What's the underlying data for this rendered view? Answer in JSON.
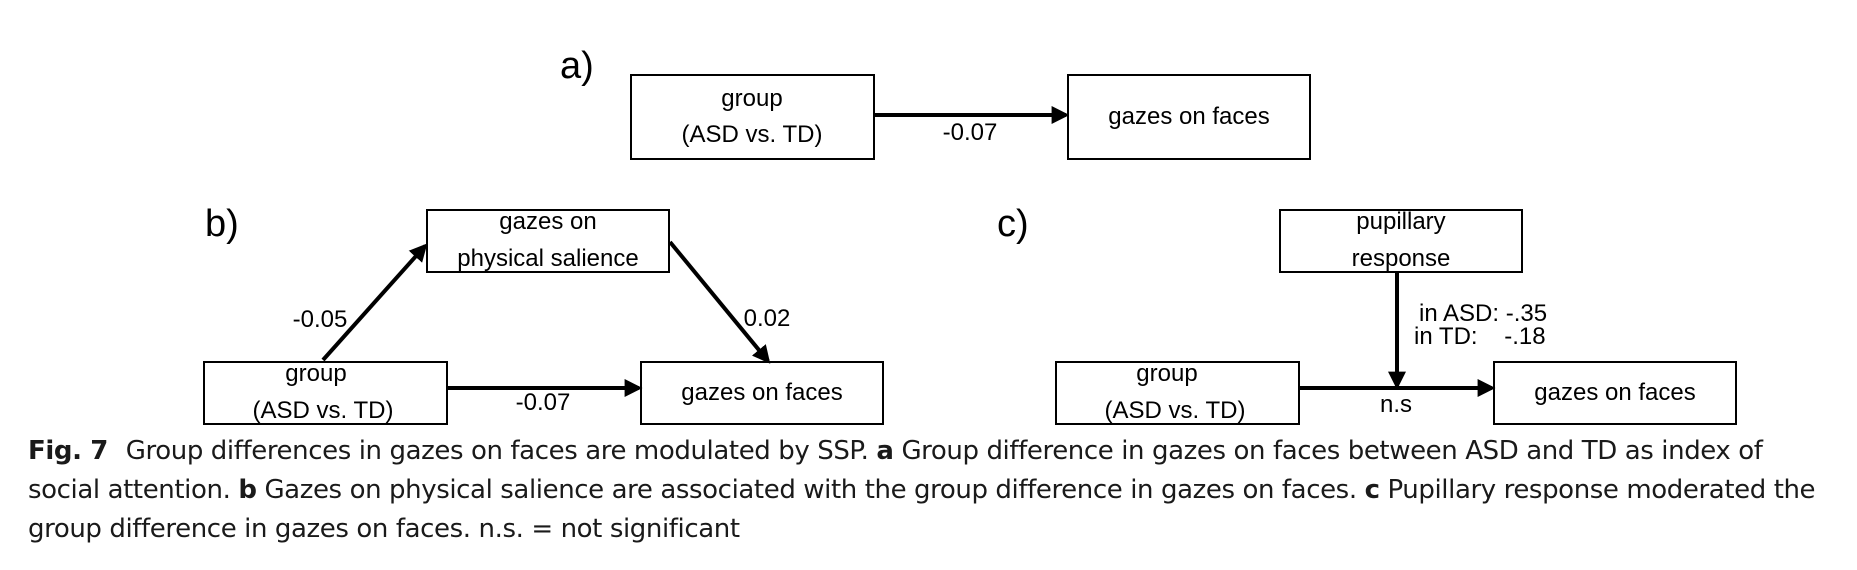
{
  "panels": {
    "a": {
      "label": "a)",
      "group_line1": "group",
      "group_line2": "(ASD vs. TD)",
      "outcome": "gazes on faces",
      "coef_direct": "-0.07"
    },
    "b": {
      "label": "b)",
      "mediator_line1": "gazes on",
      "mediator_line2": "physical salience",
      "group_line1": "group",
      "group_line2": "(ASD vs. TD)",
      "outcome": "gazes on faces",
      "coef_a": "-0.05",
      "coef_b": "0.02",
      "coef_direct": "-0.07"
    },
    "c": {
      "label": "c)",
      "moderator_line1": "pupillary",
      "moderator_line2": "response",
      "group_line1": "group",
      "group_line2": "(ASD vs. TD)",
      "outcome": "gazes on faces",
      "coef_asd": "in ASD: -.35",
      "coef_td": "in TD:    -.18",
      "coef_direct": "n.s"
    }
  },
  "caption": {
    "fig_label": "Fig. 7",
    "intro": "Group differences in gazes on faces are modulated by SSP.",
    "a_label": "a",
    "a_text": "Group difference in gazes on faces between ASD and TD as index of social attention.",
    "b_label": "b",
    "b_text": "Gazes on physical salience are associated with the group difference in gazes on faces.",
    "c_label": "c",
    "c_text": "Pupillary response moderated the group difference in gazes on faces. n.s. = not significant"
  }
}
